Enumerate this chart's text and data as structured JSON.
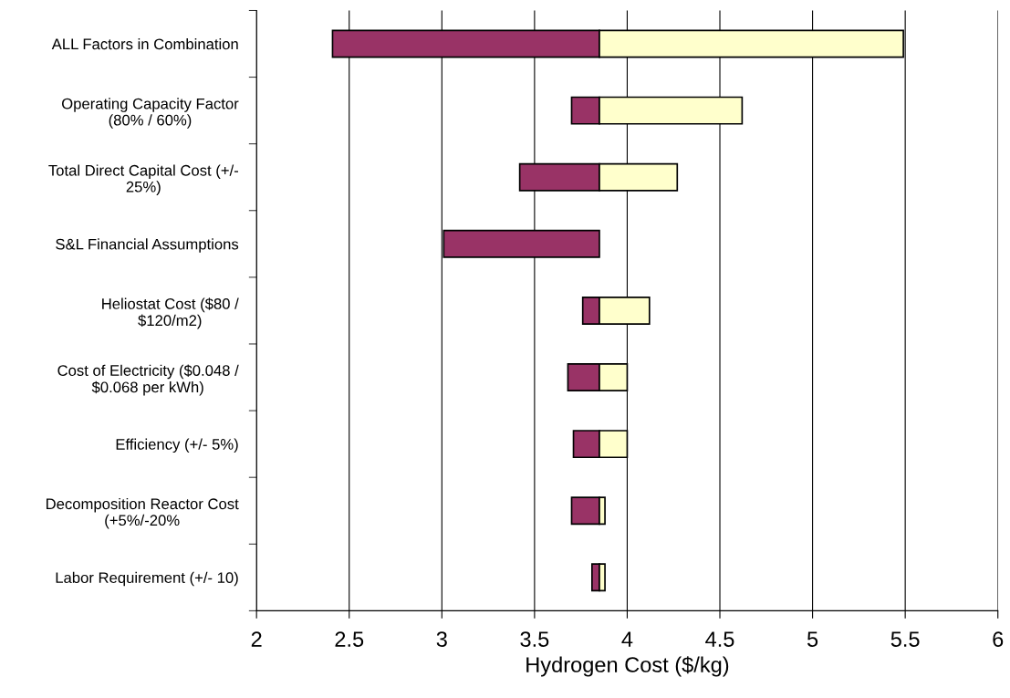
{
  "chart_data": {
    "type": "bar",
    "orientation": "horizontal",
    "stacked": true,
    "xlabel": "Hydrogen Cost ($/kg)",
    "categories": [
      "ALL Factors in Combination",
      "Operating Capacity Factor\n(80% / 60%)",
      "Total Direct Capital Cost (+/-\n25%)",
      "S&L Financial Assumptions",
      "Heliostat Cost ($80 /\n$120/m2)",
      "Cost of Electricity ($0.048 /\n$0.068 per kWh)",
      "Efficiency (+/- 5%)",
      "Decomposition Reactor Cost\n(+5%/-20%",
      "Labor Requirement (+/- 10)"
    ],
    "series": [
      {
        "color": "#993366",
        "base": [
          2.41,
          3.7,
          3.42,
          3.01,
          3.76,
          3.68,
          3.71,
          3.7,
          3.81
        ],
        "values": [
          1.44,
          0.15,
          0.43,
          0.84,
          0.09,
          0.17,
          0.14,
          0.15,
          0.04
        ]
      },
      {
        "color": "#ffffcc",
        "base": [
          3.85,
          3.85,
          3.85,
          null,
          3.85,
          3.85,
          3.85,
          3.85,
          3.85
        ],
        "values": [
          1.64,
          0.77,
          0.42,
          null,
          0.27,
          0.15,
          0.15,
          0.03,
          0.03
        ]
      }
    ],
    "xlim": [
      2,
      6
    ],
    "xticks": [
      2,
      2.5,
      3,
      3.5,
      4,
      4.5,
      5,
      5.5,
      6
    ],
    "grid": "x",
    "legend": false
  }
}
